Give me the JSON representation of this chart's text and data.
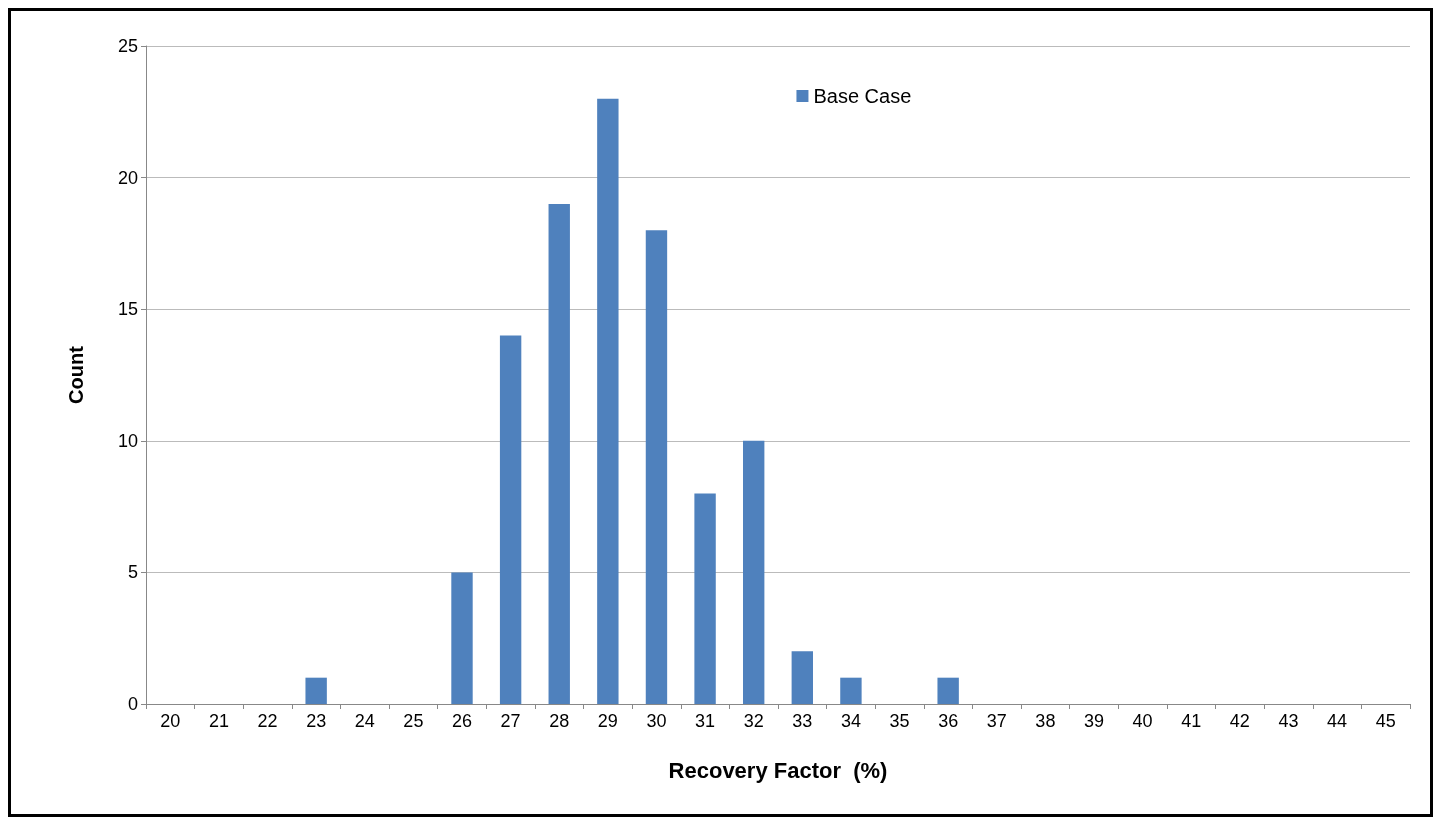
{
  "chart_data": {
    "type": "bar",
    "xlabel": "Recovery Factor  (%)",
    "ylabel": "Count",
    "categories": [
      "20",
      "21",
      "22",
      "23",
      "24",
      "25",
      "26",
      "27",
      "28",
      "29",
      "30",
      "31",
      "32",
      "33",
      "34",
      "35",
      "36",
      "37",
      "38",
      "39",
      "40",
      "41",
      "42",
      "43",
      "44",
      "45"
    ],
    "series": [
      {
        "name": "Base Case",
        "color": "#4f81bd",
        "values": [
          0,
          0,
          0,
          1,
          0,
          0,
          5,
          14,
          19,
          23,
          18,
          8,
          10,
          2,
          1,
          0,
          1,
          0,
          0,
          0,
          0,
          0,
          0,
          0,
          0,
          0
        ]
      }
    ],
    "ylim": [
      0,
      25
    ],
    "yticks": [
      0,
      5,
      10,
      15,
      20,
      25
    ],
    "grid": "y",
    "legend": "top"
  }
}
